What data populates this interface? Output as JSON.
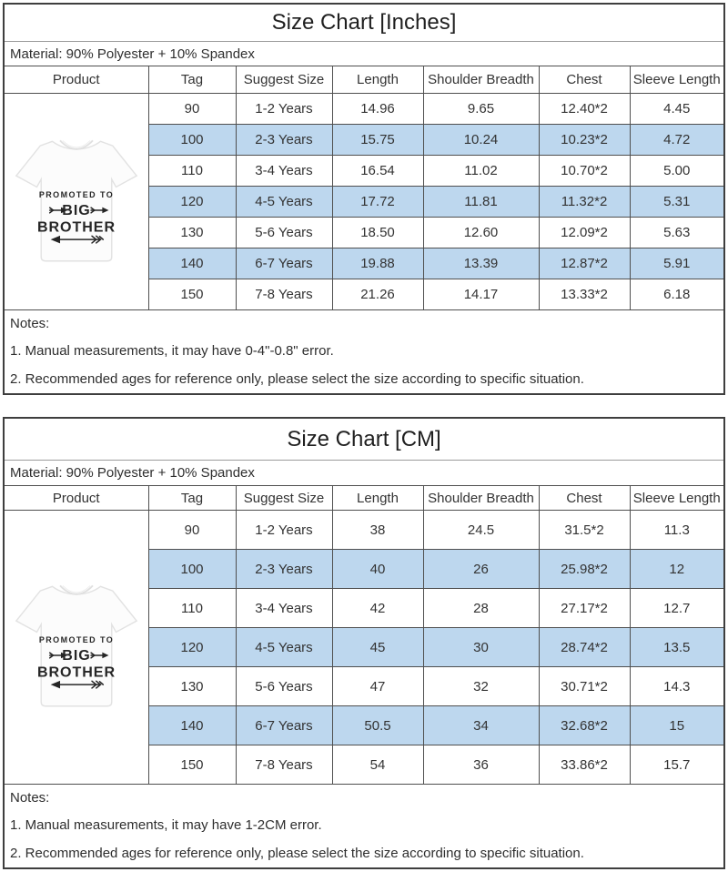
{
  "colors": {
    "row_highlight": "#BDD7EE",
    "outer_border": "#3e3e3e",
    "grid_line": "#4f4f4f",
    "text": "#333333"
  },
  "shirt": {
    "line1": "PROMOTED TO",
    "line2": "BIG",
    "line3": "BROTHER"
  },
  "tables": [
    {
      "title": "Size Chart [Inches]",
      "material": "Material: 90% Polyester + 10% Spandex",
      "columns": [
        "Product",
        "Tag",
        "Suggest Size",
        "Length",
        "Shoulder Breadth",
        "Chest",
        "Sleeve Length"
      ],
      "rows": [
        [
          "90",
          "1-2 Years",
          "14.96",
          "9.65",
          "12.40*2",
          "4.45"
        ],
        [
          "100",
          "2-3 Years",
          "15.75",
          "10.24",
          "10.23*2",
          "4.72"
        ],
        [
          "110",
          "3-4 Years",
          "16.54",
          "11.02",
          "10.70*2",
          "5.00"
        ],
        [
          "120",
          "4-5 Years",
          "17.72",
          "11.81",
          "11.32*2",
          "5.31"
        ],
        [
          "130",
          "5-6 Years",
          "18.50",
          "12.60",
          "12.09*2",
          "5.63"
        ],
        [
          "140",
          "6-7 Years",
          "19.88",
          "13.39",
          "12.87*2",
          "5.91"
        ],
        [
          "150",
          "7-8 Years",
          "21.26",
          "14.17",
          "13.33*2",
          "6.18"
        ]
      ],
      "highlighted_rows": [
        1,
        3,
        5
      ],
      "notes": {
        "label": "Notes:",
        "items": [
          "1. Manual measurements, it may have 0-4\"-0.8\" error.",
          "2. Recommended ages for reference only, please select the size according to specific situation."
        ]
      }
    },
    {
      "title": "Size Chart [CM]",
      "material": "Material: 90% Polyester + 10% Spandex",
      "columns": [
        "Product",
        "Tag",
        "Suggest Size",
        "Length",
        "Shoulder Breadth",
        "Chest",
        "Sleeve Length"
      ],
      "rows": [
        [
          "90",
          "1-2 Years",
          "38",
          "24.5",
          "31.5*2",
          "11.3"
        ],
        [
          "100",
          "2-3 Years",
          "40",
          "26",
          "25.98*2",
          "12"
        ],
        [
          "110",
          "3-4 Years",
          "42",
          "28",
          "27.17*2",
          "12.7"
        ],
        [
          "120",
          "4-5 Years",
          "45",
          "30",
          "28.74*2",
          "13.5"
        ],
        [
          "130",
          "5-6 Years",
          "47",
          "32",
          "30.71*2",
          "14.3"
        ],
        [
          "140",
          "6-7 Years",
          "50.5",
          "34",
          "32.68*2",
          "15"
        ],
        [
          "150",
          "7-8 Years",
          "54",
          "36",
          "33.86*2",
          "15.7"
        ]
      ],
      "highlighted_rows": [
        1,
        3,
        5
      ],
      "notes": {
        "label": "Notes:",
        "items": [
          "1. Manual measurements, it may have 1-2CM error.",
          "2. Recommended ages for reference only, please select the size according to specific situation."
        ]
      }
    }
  ]
}
